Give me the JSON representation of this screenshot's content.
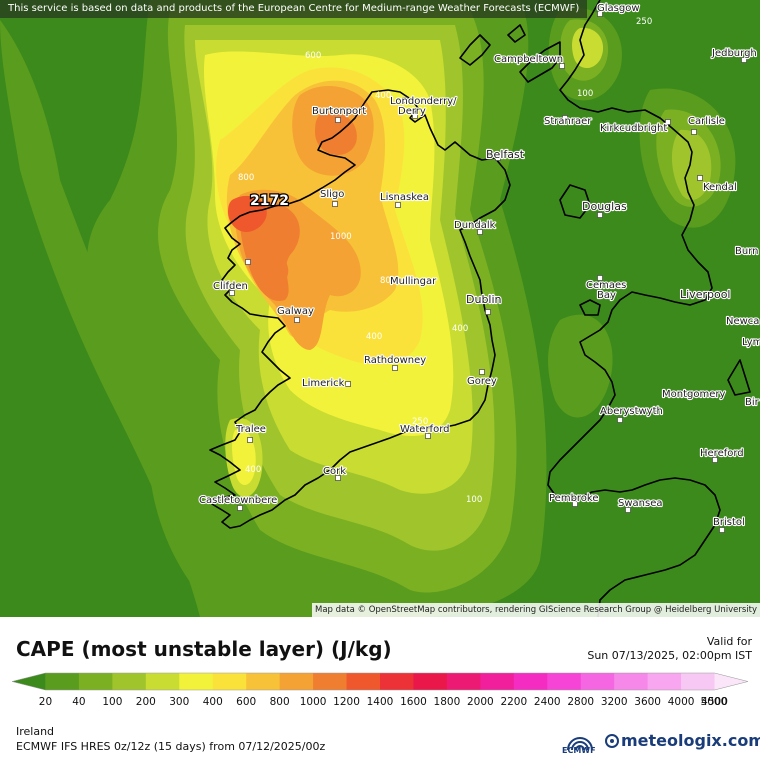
{
  "notice": "This service is based on data and products of the European Centre for Medium-range Weather Forecasts (ECMWF)",
  "attribution": "Map data © OpenStreetMap contributors, rendering GIScience Research Group @ Heidelberg University",
  "title": "CAPE (most unstable layer) (J/kg)",
  "valid_label": "Valid for",
  "valid_time": "Sun 07/13/2025, 02:00pm IST",
  "region": "Ireland",
  "model_run": "ECMWF IFS HRES 0z/12z (15 days) from  07/12/2025/00z",
  "brand": "meteologix.com",
  "ecmwf_logo_text": "ECMWF",
  "max_value": "2172",
  "legend": {
    "values": [
      "20",
      "40",
      "100",
      "200",
      "300",
      "400",
      "600",
      "800",
      "1000",
      "1200",
      "1400",
      "1600",
      "1800",
      "2000",
      "2200",
      "2400",
      "2800",
      "3200",
      "3600",
      "4000",
      "4500",
      "5000"
    ],
    "colors": [
      "#3c8a1c",
      "#5a9c1e",
      "#7bb023",
      "#a0c52c",
      "#c9dc32",
      "#f2f23a",
      "#fbe23a",
      "#f8c238",
      "#f4a234",
      "#f07e30",
      "#ee582c",
      "#ec3236",
      "#ea184a",
      "#ec1a72",
      "#f21f9c",
      "#f52cc2",
      "#f544d6",
      "#f566e2",
      "#f688ea",
      "#f7a6ef",
      "#f8c8f4",
      "#fbe6f9"
    ]
  },
  "places": [
    {
      "name": "Glasgow"
    },
    {
      "name": "Campbeltown"
    },
    {
      "name": "Jedburgh"
    },
    {
      "name": "Burtonport"
    },
    {
      "name": "Londonderry/"
    },
    {
      "name": "Derry"
    },
    {
      "name": "Stranraer"
    },
    {
      "name": "Kirkcudbright"
    },
    {
      "name": "Carlisle"
    },
    {
      "name": "Belfast"
    },
    {
      "name": "Kendal"
    },
    {
      "name": "Sligo"
    },
    {
      "name": "Lisnaskea"
    },
    {
      "name": "Douglas"
    },
    {
      "name": "Dundalk"
    },
    {
      "name": "Burn"
    },
    {
      "name": "Clifden"
    },
    {
      "name": "Mullingar"
    },
    {
      "name": "Cemaes"
    },
    {
      "name": "Bay"
    },
    {
      "name": "Liverpool"
    },
    {
      "name": "Dublin"
    },
    {
      "name": "Galway"
    },
    {
      "name": "Newca"
    },
    {
      "name": "Lym"
    },
    {
      "name": "Rathdowney"
    },
    {
      "name": "Limerick"
    },
    {
      "name": "Gorey"
    },
    {
      "name": "Montgomery"
    },
    {
      "name": "Bir"
    },
    {
      "name": "Aberystwyth"
    },
    {
      "name": "Tralee"
    },
    {
      "name": "Waterford"
    },
    {
      "name": "Hereford"
    },
    {
      "name": "Cork"
    },
    {
      "name": "Pembroke"
    },
    {
      "name": "Swansea"
    },
    {
      "name": "Castletownbere"
    },
    {
      "name": "Bristol"
    }
  ],
  "contour_labels": [
    "250",
    "600",
    "100",
    "800",
    "1000",
    "800",
    "400",
    "400",
    "250",
    "400",
    "100",
    "400"
  ]
}
